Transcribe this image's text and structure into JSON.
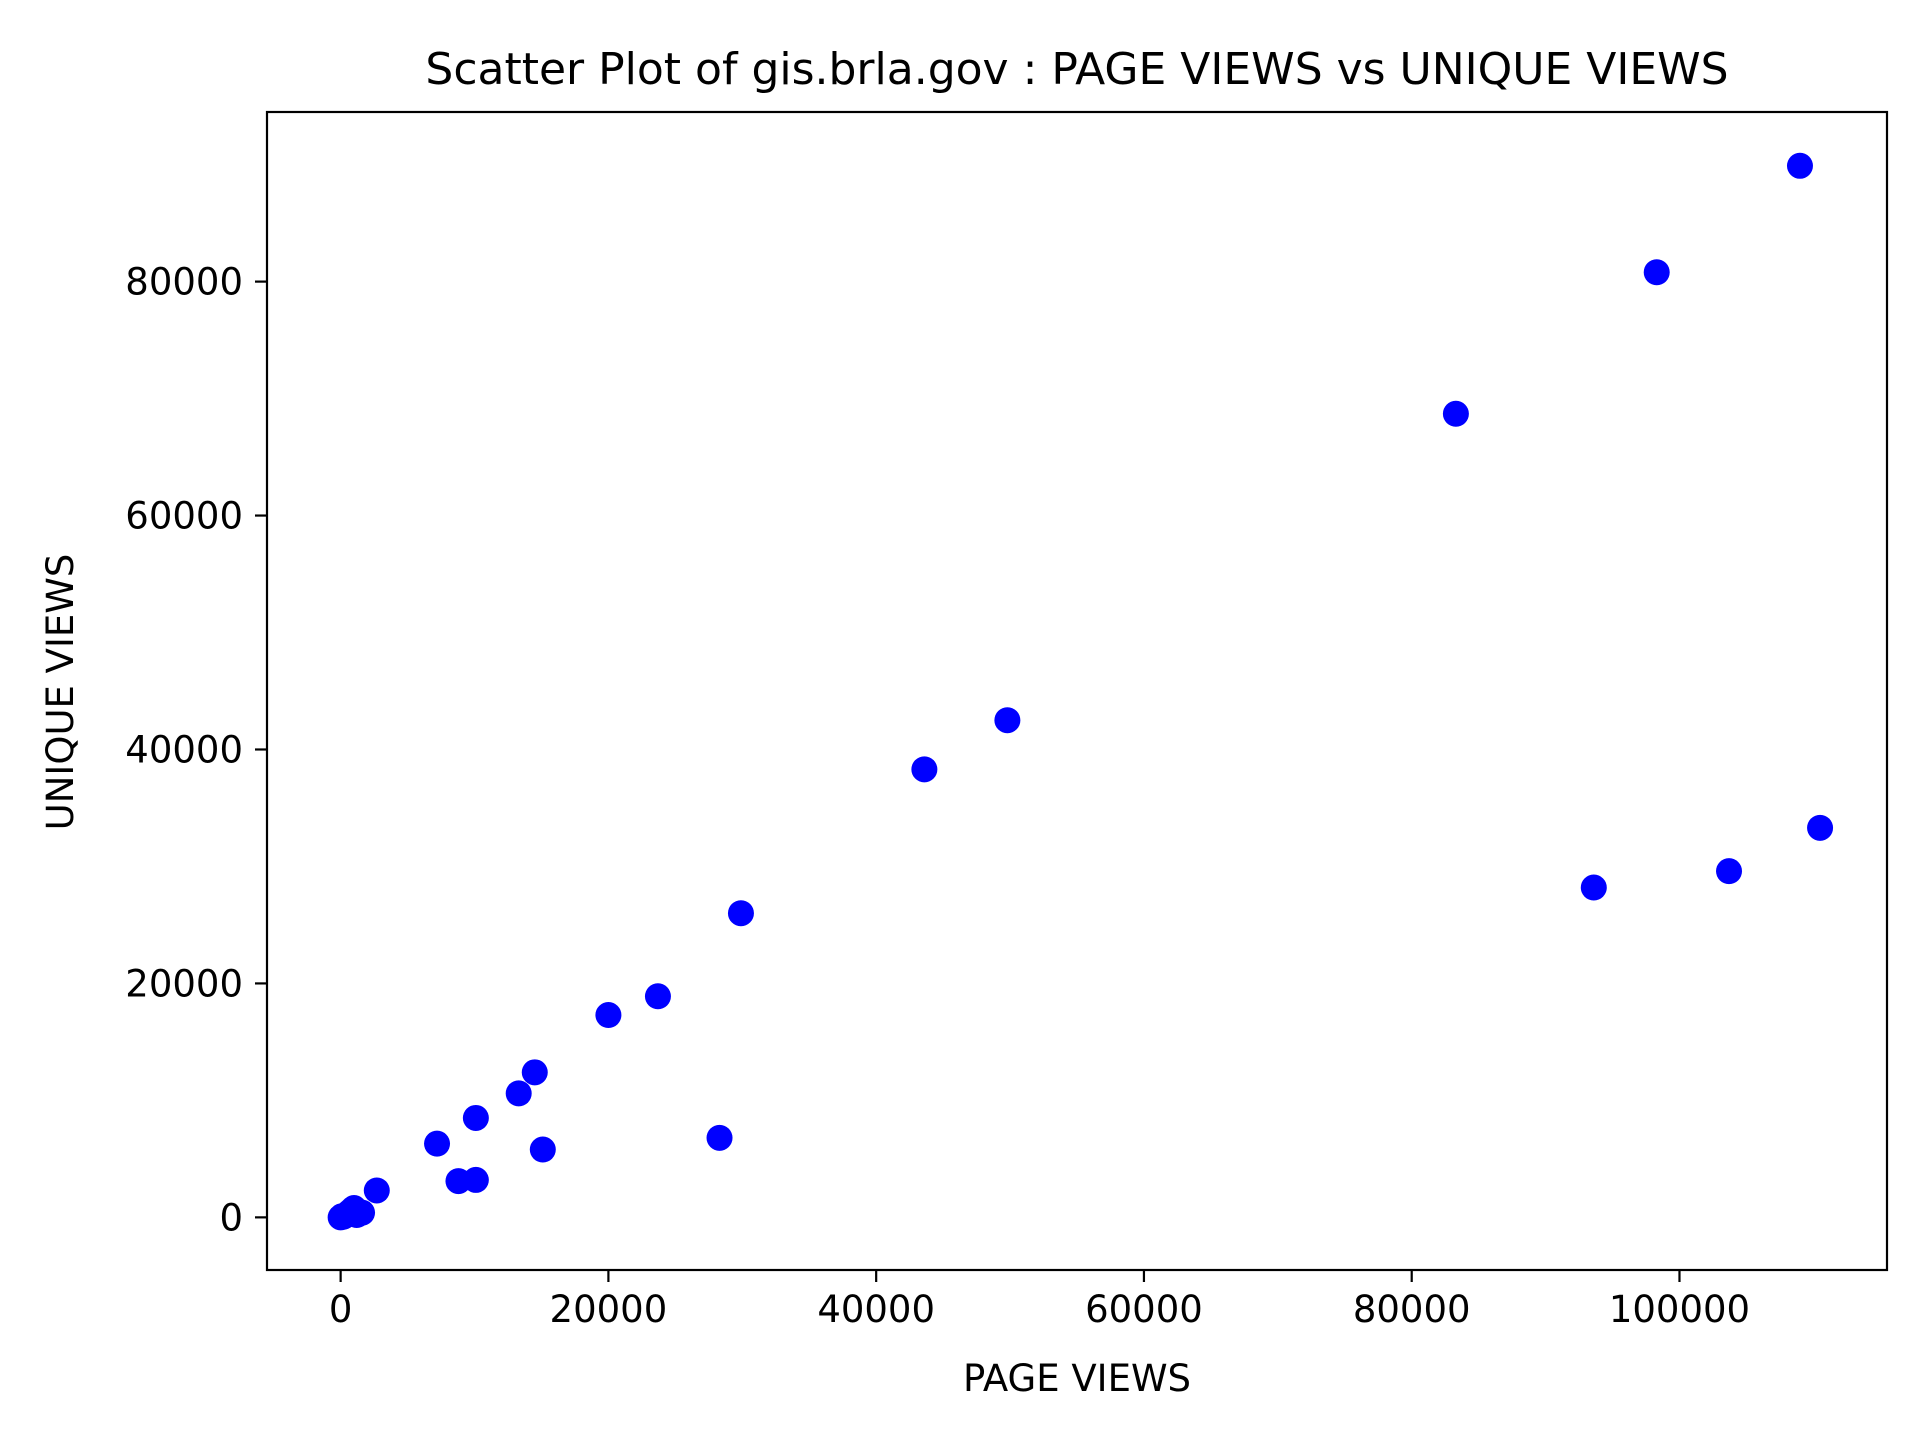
{
  "chart_data": {
    "type": "scatter",
    "title": "Scatter Plot of gis.brla.gov : PAGE VIEWS vs UNIQUE VIEWS",
    "xlabel": "PAGE VIEWS",
    "ylabel": "UNIQUE VIEWS",
    "xlim": [
      -5500,
      115500
    ],
    "ylim": [
      -4500,
      94500
    ],
    "xticks": [
      0,
      20000,
      40000,
      60000,
      80000,
      100000
    ],
    "xtick_labels": [
      "0",
      "20000",
      "40000",
      "60000",
      "80000",
      "100000"
    ],
    "yticks": [
      0,
      20000,
      40000,
      60000,
      80000
    ],
    "ytick_labels": [
      "0",
      "20000",
      "40000",
      "60000",
      "80000"
    ],
    "grid": false,
    "marker_color": "#0000ff",
    "series": [
      {
        "points": [
          {
            "x": 0,
            "y": 0
          },
          {
            "x": 100,
            "y": 100
          },
          {
            "x": 200,
            "y": 50
          },
          {
            "x": 300,
            "y": 150
          },
          {
            "x": 500,
            "y": 300
          },
          {
            "x": 700,
            "y": 500
          },
          {
            "x": 900,
            "y": 700
          },
          {
            "x": 1000,
            "y": 800
          },
          {
            "x": 1200,
            "y": 200
          },
          {
            "x": 1600,
            "y": 400
          },
          {
            "x": 2700,
            "y": 2300
          },
          {
            "x": 7200,
            "y": 6300
          },
          {
            "x": 8800,
            "y": 3100
          },
          {
            "x": 10100,
            "y": 3200
          },
          {
            "x": 10100,
            "y": 8500
          },
          {
            "x": 13300,
            "y": 10600
          },
          {
            "x": 14500,
            "y": 12400
          },
          {
            "x": 15100,
            "y": 5800
          },
          {
            "x": 20000,
            "y": 17300
          },
          {
            "x": 23700,
            "y": 18900
          },
          {
            "x": 28300,
            "y": 6800
          },
          {
            "x": 29900,
            "y": 26000
          },
          {
            "x": 43600,
            "y": 38300
          },
          {
            "x": 49800,
            "y": 42500
          },
          {
            "x": 83300,
            "y": 68700
          },
          {
            "x": 93600,
            "y": 28200
          },
          {
            "x": 98300,
            "y": 80800
          },
          {
            "x": 103700,
            "y": 29600
          },
          {
            "x": 109000,
            "y": 89900
          },
          {
            "x": 110500,
            "y": 33300
          }
        ]
      }
    ]
  }
}
